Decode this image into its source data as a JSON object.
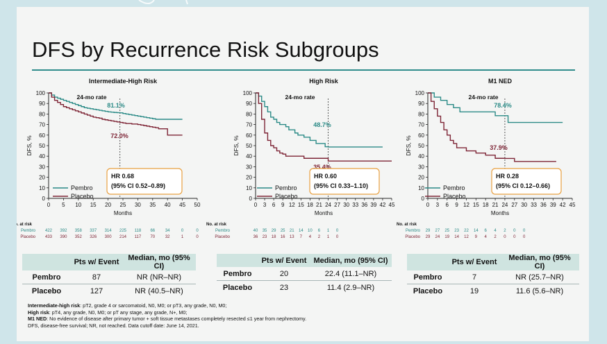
{
  "title": "DFS by Recurrence Risk Subgroups",
  "colors": {
    "pembro": "#2a8a86",
    "placebo": "#7d2435",
    "accent": "#2f8c8c",
    "hr_box": "#e8a040"
  },
  "table_headers": {
    "pts": "Pts w/ Event",
    "median": "Median, mo (95% CI)"
  },
  "no_at_risk_label": "No. at risk",
  "chart_data": [
    {
      "type": "line",
      "title": "Intermediate-High Risk",
      "ylabel": "DFS, %",
      "xlabel": "Months",
      "xlim": [
        0,
        50
      ],
      "ylim": [
        0,
        100
      ],
      "xticks": [
        "0",
        "5",
        "10",
        "15",
        "20",
        "25",
        "30",
        "35",
        "40",
        "45",
        "50"
      ],
      "yticks": [
        "0",
        "10",
        "20",
        "30",
        "40",
        "50",
        "60",
        "70",
        "80",
        "90",
        "100"
      ],
      "rate_label": "24-mo rate",
      "pembro_rate": "81.1%",
      "placebo_rate": "72.0%",
      "hr": "HR 0.68",
      "ci": "(95% CI 0.52–0.89)",
      "series": [
        {
          "name": "Pembro",
          "x": [
            0,
            1,
            2,
            3,
            4,
            5,
            6,
            7,
            8,
            9,
            10,
            11,
            12,
            13,
            14,
            15,
            16,
            17,
            18,
            19,
            20,
            21,
            22,
            23,
            24,
            25,
            26,
            27,
            28,
            29,
            30,
            31,
            32,
            33,
            34,
            35,
            36,
            37,
            38,
            40,
            42,
            44,
            45
          ],
          "y": [
            100,
            98,
            96,
            95,
            94,
            93,
            92,
            91,
            90,
            89,
            88,
            87,
            86,
            85.5,
            85,
            84.5,
            84,
            83.5,
            83,
            82.5,
            82,
            81.8,
            81.5,
            81.3,
            81.1,
            80.5,
            80,
            79.5,
            79,
            78.5,
            78,
            77.5,
            77,
            76.5,
            76,
            75.5,
            75,
            75,
            75,
            75,
            75,
            75,
            75
          ]
        },
        {
          "name": "Placebo",
          "x": [
            0,
            1,
            2,
            3,
            4,
            5,
            6,
            7,
            8,
            9,
            10,
            11,
            12,
            13,
            14,
            15,
            16,
            17,
            18,
            19,
            20,
            21,
            22,
            23,
            24,
            25,
            26,
            27,
            28,
            29,
            30,
            31,
            32,
            33,
            34,
            35,
            36,
            37,
            38,
            39,
            40,
            41,
            42,
            44,
            45
          ],
          "y": [
            100,
            96,
            93,
            91,
            89,
            87,
            86,
            85,
            84,
            83,
            82,
            81,
            80,
            79,
            78,
            77,
            76.5,
            76,
            75,
            74.5,
            74,
            73.5,
            73,
            72.5,
            72,
            71.5,
            71,
            71,
            70.5,
            70.5,
            70,
            69.5,
            69,
            68.5,
            68,
            67.5,
            67,
            66,
            66,
            66,
            60,
            60,
            60,
            60,
            60
          ]
        }
      ],
      "at_risk": [
        {
          "name": "Pembro",
          "values": [
            "422",
            "392",
            "358",
            "337",
            "314",
            "225",
            "118",
            "66",
            "34",
            "0",
            "0"
          ]
        },
        {
          "name": "Placebo",
          "values": [
            "433",
            "390",
            "352",
            "326",
            "300",
            "214",
            "117",
            "70",
            "32",
            "1",
            "0"
          ]
        }
      ],
      "table": [
        {
          "arm": "Pembro",
          "pts": "87",
          "median": "NR (NR–NR)"
        },
        {
          "arm": "Placebo",
          "pts": "127",
          "median": "NR (40.5–NR)"
        }
      ]
    },
    {
      "type": "line",
      "title": "High Risk",
      "ylabel": "DFS, %",
      "xlabel": "Months",
      "xlim": [
        0,
        45
      ],
      "ylim": [
        0,
        100
      ],
      "xticks": [
        "0",
        "3",
        "6",
        "9",
        "12",
        "15",
        "18",
        "21",
        "24",
        "27",
        "30",
        "33",
        "36",
        "39",
        "42",
        "45"
      ],
      "yticks": [
        "0",
        "10",
        "20",
        "30",
        "40",
        "50",
        "60",
        "70",
        "80",
        "90",
        "100"
      ],
      "rate_label": "24-mo rate",
      "pembro_rate": "48.7%",
      "placebo_rate": "35.4%",
      "hr": "HR 0.60",
      "ci": "(95% CI 0.33–1.10)",
      "series": [
        {
          "name": "Pembro",
          "x": [
            0,
            1,
            2,
            3,
            4,
            5,
            6,
            7,
            8,
            9,
            10,
            11,
            12,
            13,
            14,
            15,
            16,
            17,
            18,
            19,
            20,
            21,
            22,
            23,
            24,
            25,
            27,
            30,
            33,
            36,
            39,
            42
          ],
          "y": [
            100,
            97,
            92,
            87,
            82,
            77,
            75,
            72,
            70,
            70,
            68,
            65,
            65,
            62,
            60,
            60,
            58,
            58,
            55,
            55,
            52,
            52,
            52,
            49,
            48.7,
            48.7,
            48.7,
            48.7,
            48.7,
            48.7,
            48.7,
            48.7
          ]
        },
        {
          "name": "Placebo",
          "x": [
            0,
            1,
            2,
            3,
            4,
            5,
            6,
            7,
            8,
            9,
            10,
            12,
            14,
            16,
            18,
            20,
            22,
            24,
            27,
            30,
            33,
            36,
            39,
            42,
            45
          ],
          "y": [
            100,
            90,
            75,
            62,
            55,
            50,
            48,
            45,
            43,
            42,
            40,
            40,
            40,
            38,
            38,
            38,
            38,
            35.4,
            35.4,
            35.4,
            35.4,
            35.4,
            35.4,
            35.4,
            35.4
          ]
        }
      ],
      "at_risk": [
        {
          "name": "Pembro",
          "values": [
            "40",
            "35",
            "29",
            "25",
            "21",
            "14",
            "10",
            "6",
            "1",
            "0"
          ]
        },
        {
          "name": "Placebo",
          "values": [
            "36",
            "23",
            "18",
            "16",
            "13",
            "7",
            "4",
            "2",
            "1",
            "0"
          ]
        }
      ],
      "table": [
        {
          "arm": "Pembro",
          "pts": "20",
          "median": "22.4 (11.1–NR)"
        },
        {
          "arm": "Placebo",
          "pts": "23",
          "median": "11.4 (2.9–NR)"
        }
      ]
    },
    {
      "type": "line",
      "title": "M1 NED",
      "ylabel": "DFS, %",
      "xlabel": "Months",
      "xlim": [
        0,
        45
      ],
      "ylim": [
        0,
        100
      ],
      "xticks": [
        "0",
        "3",
        "6",
        "9",
        "12",
        "15",
        "18",
        "21",
        "24",
        "27",
        "30",
        "33",
        "36",
        "39",
        "42",
        "45"
      ],
      "yticks": [
        "0",
        "10",
        "20",
        "30",
        "40",
        "50",
        "60",
        "70",
        "80",
        "90",
        "100"
      ],
      "rate_label": "24-mo rate",
      "pembro_rate": "78.4%",
      "placebo_rate": "37.9%",
      "hr": "HR 0.28",
      "ci": "(95% CI 0.12–0.66)",
      "series": [
        {
          "name": "Pembro",
          "x": [
            0,
            2,
            4,
            6,
            8,
            10,
            12,
            15,
            18,
            21,
            24,
            25,
            27,
            30,
            33,
            36,
            39,
            42
          ],
          "y": [
            100,
            96,
            93,
            89,
            86,
            82,
            82,
            82,
            82,
            78.4,
            78.4,
            72,
            72,
            72,
            72,
            72,
            72,
            72
          ]
        },
        {
          "name": "Placebo",
          "x": [
            0,
            1,
            2,
            3,
            4,
            5,
            6,
            7,
            8,
            9,
            10,
            12,
            15,
            18,
            21,
            24,
            27,
            30,
            33,
            36,
            39,
            40
          ],
          "y": [
            100,
            92,
            85,
            78,
            72,
            65,
            60,
            55,
            52,
            48,
            48,
            45,
            43,
            41,
            38,
            37.9,
            35,
            35,
            35,
            35,
            35,
            35
          ]
        }
      ],
      "at_risk": [
        {
          "name": "Pembro",
          "values": [
            "29",
            "27",
            "25",
            "23",
            "22",
            "14",
            "6",
            "4",
            "2",
            "0",
            "0"
          ]
        },
        {
          "name": "Placebo",
          "values": [
            "29",
            "24",
            "19",
            "14",
            "12",
            "9",
            "4",
            "2",
            "0",
            "0",
            "0"
          ]
        }
      ],
      "table": [
        {
          "arm": "Pembro",
          "pts": "7",
          "median": "NR (25.7–NR)"
        },
        {
          "arm": "Placebo",
          "pts": "19",
          "median": "11.6 (5.6–NR)"
        }
      ]
    }
  ],
  "footnotes": {
    "line1_label": "Intermediate-high risk",
    "line1_text": ": pT2, grade 4 or sarcomatoid, N0, M0; or pT3, any grade, N0, M0;",
    "line2_label": "High risk",
    "line2_text": ": pT4, any grade, N0, M0; or pT any stage, any grade, N+, M0;",
    "line3_label": "M1 NED",
    "line3_text": ": No evidence of disease after primary tumor + soft tissue metastases completely resected ≤1 year from nephrectomy.",
    "line4_text": "DFS, disease-free survival; NR, not reached. Data cutoff date: June 14, 2021."
  }
}
